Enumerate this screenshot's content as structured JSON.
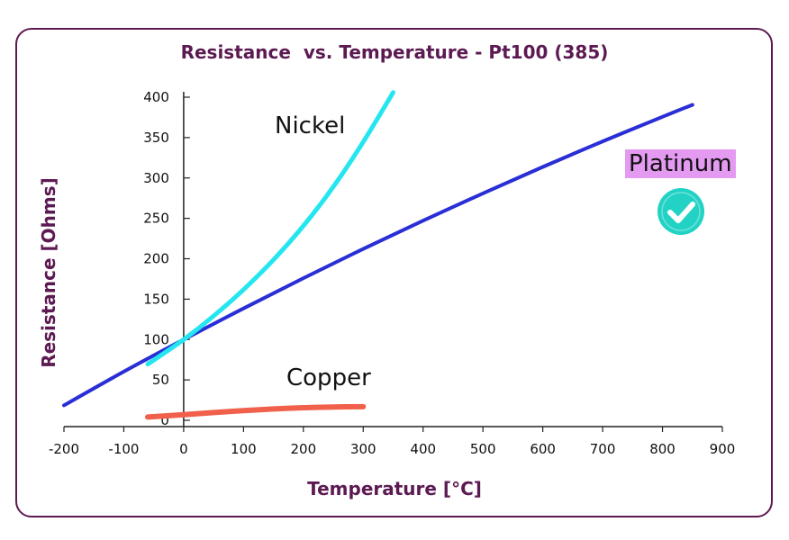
{
  "colors": {
    "frame": "#5c1a52",
    "title": "#5c1a52",
    "platinum": "#2a2ed6",
    "nickel": "#25e6f0",
    "copper": "#f0604a",
    "badge": "#e39af0",
    "check_fill": "#22d3c5"
  },
  "chart_data": {
    "type": "line",
    "title": "Resistance  vs. Temperature - Pt100 (385)",
    "xlabel": "Temperature [°C]",
    "ylabel": "Resistance [Ohms]",
    "xlim": [
      -200,
      900
    ],
    "ylim": [
      0,
      400
    ],
    "xticks": [
      "-200",
      "-100",
      "0",
      "100",
      "200",
      "300",
      "400",
      "500",
      "600",
      "700",
      "800",
      "900"
    ],
    "yticks": [
      "0",
      "50",
      "100",
      "150",
      "200",
      "250",
      "300",
      "350",
      "400"
    ],
    "series": [
      {
        "name": "Platinum",
        "x": [
          -200,
          -100,
          0,
          100,
          200,
          300,
          400,
          500,
          600,
          700,
          800,
          850
        ],
        "y": [
          18.5,
          60.3,
          100,
          138.5,
          175.9,
          212.1,
          247.1,
          280.9,
          313.7,
          345.3,
          375.7,
          390.5
        ]
      },
      {
        "name": "Nickel",
        "x": [
          -60,
          0,
          50,
          100,
          150,
          200,
          250,
          300,
          350
        ],
        "y": [
          69.5,
          100,
          129.1,
          161.8,
          198.7,
          240.7,
          289.0,
          344.6,
          405.9
        ]
      },
      {
        "name": "Copper",
        "x": [
          -60,
          0,
          50,
          100,
          150,
          200,
          250,
          300
        ],
        "y": [
          4,
          7,
          9.6,
          12,
          14,
          15.6,
          16.5,
          16.8
        ]
      }
    ],
    "annotations": [
      "Nickel",
      "Platinum",
      "Copper"
    ]
  }
}
